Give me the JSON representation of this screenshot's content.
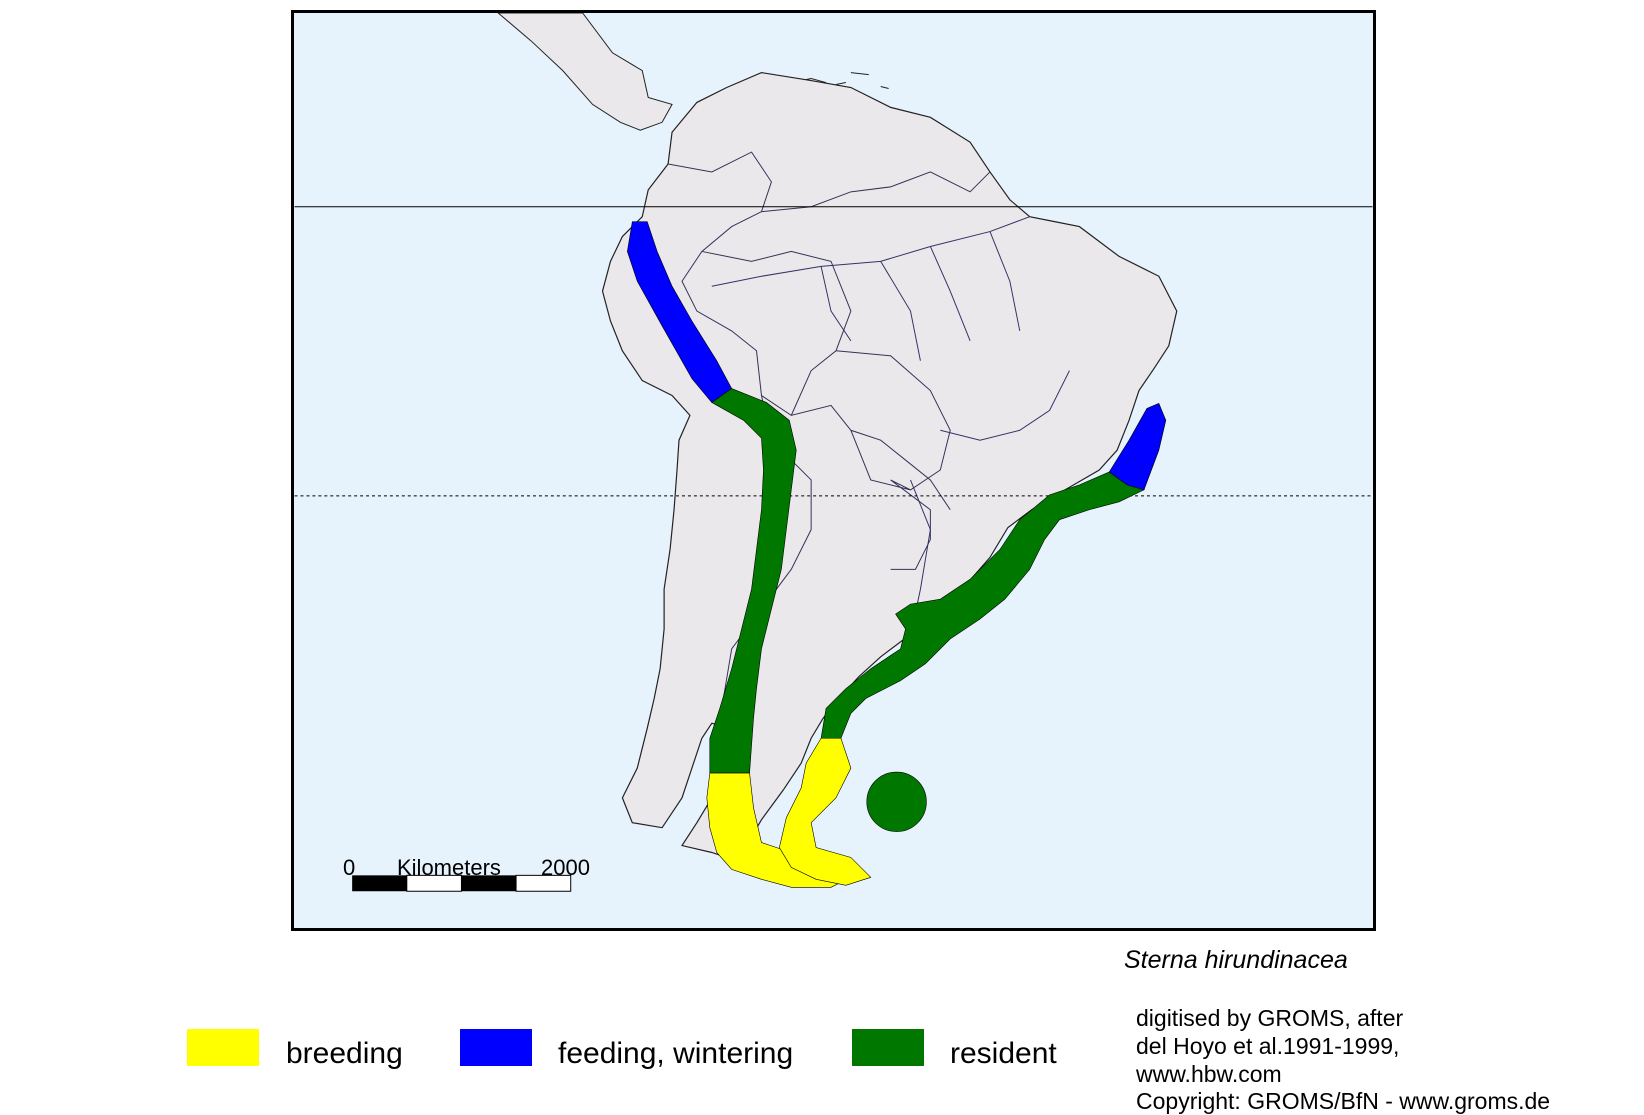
{
  "species_name": "Sterna hirundinacea",
  "scale_bar": {
    "start_label": "0",
    "unit_label": "Kilometers",
    "end_label": "2000"
  },
  "legend": [
    {
      "label": "breeding",
      "color": "#ffff00"
    },
    {
      "label": "feeding, wintering",
      "color": "#0000ff"
    },
    {
      "label": "resident",
      "color": "#007800"
    }
  ],
  "credits": [
    "digitised by GROMS, after",
    "del Hoyo et al.1991-1999,",
    "www.hbw.com",
    "Copyright: GROMS/BfN - www.groms.de"
  ],
  "colors": {
    "ocean": "#e6f2fc",
    "land": "#ebe8ec",
    "border": "#333355",
    "river": "#333366"
  }
}
